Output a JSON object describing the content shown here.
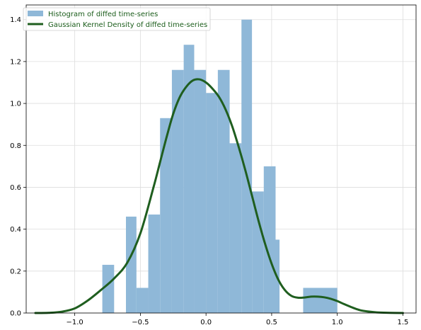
{
  "chart_data": {
    "type": "histogram+density",
    "title": "",
    "xlabel": "",
    "ylabel": "",
    "xlim": [
      -1.37,
      1.6
    ],
    "ylim": [
      0,
      1.47
    ],
    "grid": true,
    "legend_position": "top-left",
    "x_ticks": [
      -1.0,
      -0.5,
      0.0,
      0.5,
      1.0,
      1.5
    ],
    "x_tick_labels": [
      "−1.0",
      "−0.5",
      "0.0",
      "0.5",
      "1.0",
      "1.5"
    ],
    "y_ticks": [
      0.0,
      0.2,
      0.4,
      0.6,
      0.8,
      1.0,
      1.2,
      1.4
    ],
    "y_tick_labels": [
      "0.0",
      "0.2",
      "0.4",
      "0.6",
      "0.8",
      "1.0",
      "1.2",
      "1.4"
    ],
    "legend": [
      {
        "label": "Histogram of diffed time-series",
        "kind": "patch",
        "color": "#8fb8d8"
      },
      {
        "label": "Gaussian Kernel Density of diffed time-series",
        "kind": "line",
        "color": "#1f5e1f"
      }
    ],
    "histogram": {
      "name": "Histogram of diffed time-series",
      "color": "#8fb8d8",
      "bins": [
        {
          "x0": -0.79,
          "x1": -0.7,
          "density": 0.23
        },
        {
          "x0": -0.61,
          "x1": -0.53,
          "density": 0.46
        },
        {
          "x0": -0.53,
          "x1": -0.44,
          "density": 0.12
        },
        {
          "x0": -0.44,
          "x1": -0.35,
          "density": 0.47
        },
        {
          "x0": -0.35,
          "x1": -0.26,
          "density": 0.93
        },
        {
          "x0": -0.26,
          "x1": -0.17,
          "density": 1.16
        },
        {
          "x0": -0.17,
          "x1": -0.09,
          "density": 1.28
        },
        {
          "x0": -0.09,
          "x1": 0.0,
          "density": 1.16
        },
        {
          "x0": 0.0,
          "x1": 0.09,
          "density": 1.05
        },
        {
          "x0": 0.09,
          "x1": 0.18,
          "density": 1.16
        },
        {
          "x0": 0.18,
          "x1": 0.27,
          "density": 0.81
        },
        {
          "x0": 0.27,
          "x1": 0.35,
          "density": 1.4
        },
        {
          "x0": 0.35,
          "x1": 0.44,
          "density": 0.58
        },
        {
          "x0": 0.44,
          "x1": 0.53,
          "density": 0.7
        },
        {
          "x0": 0.53,
          "x1": 0.56,
          "density": 0.35
        },
        {
          "x0": 0.74,
          "x1": 1.0,
          "density": 0.12
        }
      ]
    },
    "density": {
      "name": "Gaussian Kernel Density of diffed time-series",
      "color": "#1f5e1f",
      "x": [
        -1.3,
        -1.2,
        -1.1,
        -1.0,
        -0.9,
        -0.8,
        -0.7,
        -0.6,
        -0.5,
        -0.4,
        -0.35,
        -0.3,
        -0.25,
        -0.2,
        -0.15,
        -0.1,
        -0.05,
        0.0,
        0.05,
        0.1,
        0.15,
        0.2,
        0.25,
        0.3,
        0.35,
        0.4,
        0.45,
        0.5,
        0.55,
        0.6,
        0.65,
        0.7,
        0.75,
        0.8,
        0.85,
        0.9,
        0.95,
        1.0,
        1.05,
        1.1,
        1.15,
        1.2,
        1.3,
        1.4,
        1.5
      ],
      "y": [
        0.0,
        0.001,
        0.006,
        0.022,
        0.06,
        0.11,
        0.165,
        0.24,
        0.38,
        0.6,
        0.72,
        0.84,
        0.95,
        1.03,
        1.08,
        1.11,
        1.115,
        1.1,
        1.07,
        1.03,
        0.97,
        0.89,
        0.79,
        0.68,
        0.56,
        0.44,
        0.33,
        0.235,
        0.16,
        0.11,
        0.082,
        0.073,
        0.074,
        0.078,
        0.078,
        0.075,
        0.068,
        0.057,
        0.043,
        0.03,
        0.018,
        0.01,
        0.003,
        0.001,
        0.0
      ]
    }
  }
}
